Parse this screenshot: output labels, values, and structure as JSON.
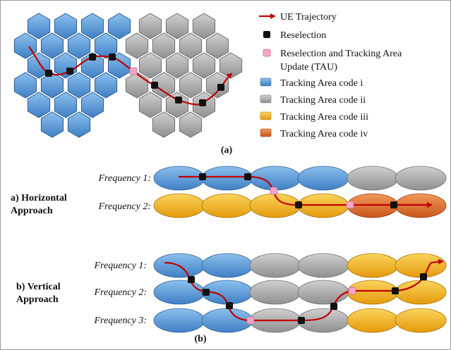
{
  "legend": {
    "trajectory": "UE Trajectory",
    "reselection": "Reselection",
    "tau_line1": "Reselection and Tracking Area",
    "tau_line2": "Update (TAU)",
    "ta_i": "Tracking Area code i",
    "ta_ii": "Tracking Area code ii",
    "ta_iii": "Tracking Area code iii",
    "ta_iv": "Tracking Area code iv"
  },
  "captions": {
    "a": "(a)",
    "b": "(b)"
  },
  "horizontal": {
    "title_line1": "a) Horizontal",
    "title_line2": "Approach",
    "freq1": "Frequency 1:",
    "freq2": "Frequency 2:"
  },
  "vertical": {
    "title_line1": "b) Vertical",
    "title_line2": "Approach",
    "freq1": "Frequency 1:",
    "freq2": "Frequency 2:",
    "freq3": "Frequency 3:"
  },
  "colors": {
    "ta_i": "#5b9bd5",
    "ta_ii": "#a6a6a6",
    "ta_iii": "#f2b01e",
    "ta_iv": "#e0702e",
    "trajectory": "#c00000",
    "reselection": "#111111",
    "tau": "#f4a6c8"
  }
}
